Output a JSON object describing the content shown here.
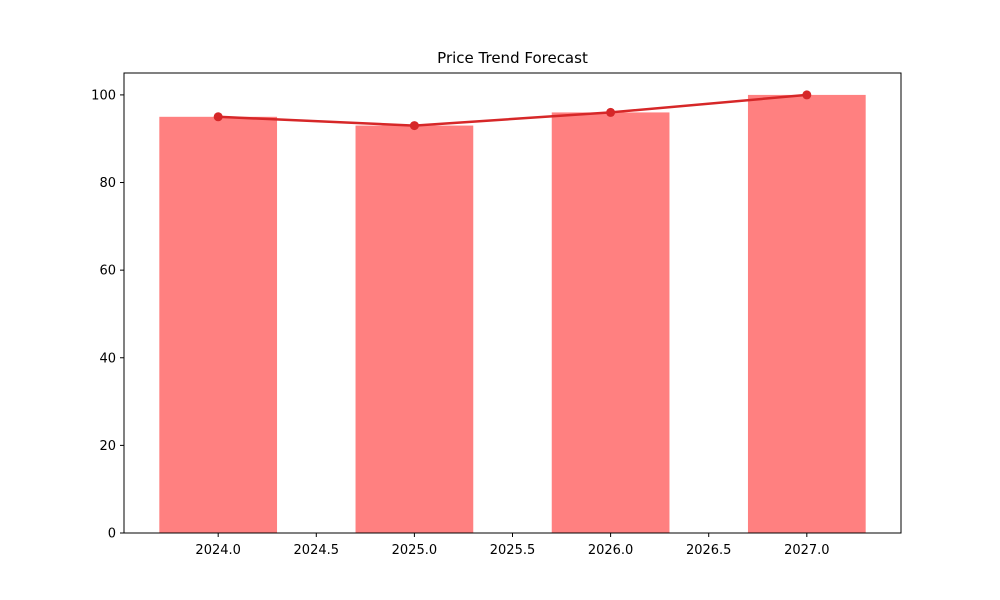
{
  "chart_data": {
    "type": "bar",
    "title": "Price Trend Forecast",
    "xlabel": "",
    "ylabel": "",
    "categories": [
      2024,
      2025,
      2026,
      2027
    ],
    "series": [
      {
        "name": "price-bars",
        "type": "bar",
        "values": [
          95,
          93,
          96,
          100
        ],
        "color": "#ff8080",
        "bar_width": 0.6
      },
      {
        "name": "trend-line",
        "type": "line",
        "values": [
          95,
          93,
          96,
          100
        ],
        "color": "#d62728",
        "marker": "circle",
        "marker_radius": 4.5,
        "linewidth": 2.5
      }
    ],
    "x_ticks": [
      2024.0,
      2024.5,
      2025.0,
      2025.5,
      2026.0,
      2026.5,
      2027.0
    ],
    "x_tick_labels": [
      "2024.0",
      "2024.5",
      "2025.0",
      "2025.5",
      "2026.0",
      "2026.5",
      "2027.0"
    ],
    "y_ticks": [
      0,
      20,
      40,
      60,
      80,
      100
    ],
    "y_tick_labels": [
      "0",
      "20",
      "40",
      "60",
      "80",
      "100"
    ],
    "xlim": [
      2023.52,
      2027.48
    ],
    "ylim": [
      0,
      105
    ],
    "grid": false,
    "legend": null,
    "background_color": "#ffffff",
    "spine_color": "#000000",
    "tick_font_size": 13,
    "title_font_size": 15
  }
}
